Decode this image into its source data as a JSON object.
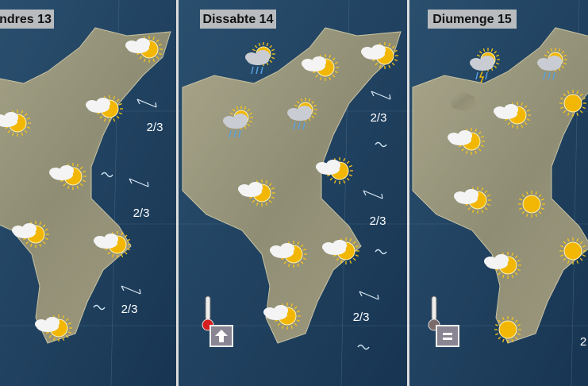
{
  "panels": [
    {
      "title": "ndres 13",
      "sea_states": [
        "2/3",
        "2/3",
        "2/3"
      ]
    },
    {
      "title": "Dissabte 14",
      "sea_states": [
        "2/3",
        "2/3",
        "2/3"
      ]
    },
    {
      "title": "Diumenge 15",
      "sea_states": [
        "2"
      ]
    }
  ]
}
